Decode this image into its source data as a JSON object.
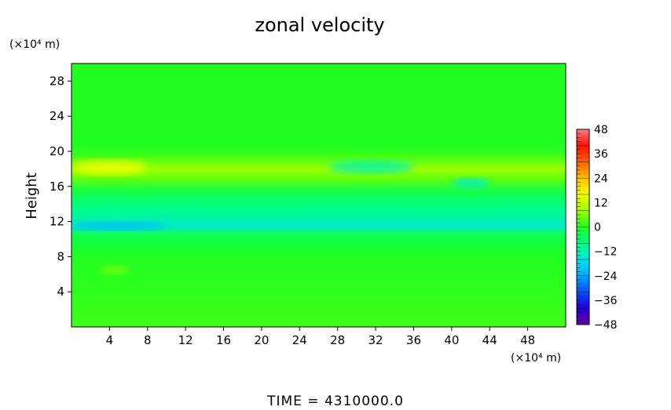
{
  "chart_data": {
    "type": "heatmap",
    "title": "zonal velocity",
    "ylabel": "Height",
    "x_unit": "(×10⁴ m)",
    "y_unit": "(×10⁴ m)",
    "xlim": [
      0,
      52
    ],
    "ylim": [
      0,
      30
    ],
    "x_ticks": [
      4,
      8,
      12,
      16,
      20,
      24,
      28,
      32,
      36,
      40,
      44,
      48
    ],
    "y_ticks": [
      4,
      8,
      12,
      16,
      20,
      24,
      28
    ],
    "colorbar": {
      "range": [
        -48,
        48
      ],
      "tick_labels": [
        "48",
        "36",
        "24",
        "12",
        "0",
        "−12",
        "−24",
        "−36",
        "−48"
      ],
      "tick_values": [
        48,
        36,
        24,
        12,
        0,
        -12,
        -24,
        -36,
        -48
      ],
      "colors": [
        "#6a00a8",
        "#1e00d0",
        "#0050ff",
        "#00a8ff",
        "#00e6e6",
        "#00ff80",
        "#20ff20",
        "#9cff00",
        "#f0ff00",
        "#ffc000",
        "#ff6000",
        "#ff1000",
        "#ff8080"
      ]
    },
    "field_bands": [
      {
        "height": 0.0,
        "value": 2
      },
      {
        "height": 8.0,
        "value": 0
      },
      {
        "height": 10.5,
        "value": -4
      },
      {
        "height": 11.5,
        "value": -14
      },
      {
        "height": 12.8,
        "value": -10
      },
      {
        "height": 14.2,
        "value": -7
      },
      {
        "height": 15.5,
        "value": -3
      },
      {
        "height": 16.8,
        "value": 4
      },
      {
        "height": 18.0,
        "value": 8
      },
      {
        "height": 19.5,
        "value": 2
      },
      {
        "height": 20.5,
        "value": 0
      },
      {
        "height": 30.0,
        "value": 0
      }
    ],
    "features": [
      {
        "x_range": [
          0,
          10
        ],
        "y_range": [
          11.0,
          12.0
        ],
        "value": -22
      },
      {
        "x_range": [
          0,
          8
        ],
        "y_range": [
          17.3,
          19.0
        ],
        "value": 16
      },
      {
        "x_range": [
          27,
          36
        ],
        "y_range": [
          17.5,
          19.0
        ],
        "value": -12
      },
      {
        "x_range": [
          40,
          44
        ],
        "y_range": [
          15.8,
          17.0
        ],
        "value": -14
      },
      {
        "x_range": [
          3,
          6
        ],
        "y_range": [
          6.0,
          7.0
        ],
        "value": 6
      }
    ]
  },
  "footer": {
    "time_label": "TIME = 4310000.0"
  }
}
